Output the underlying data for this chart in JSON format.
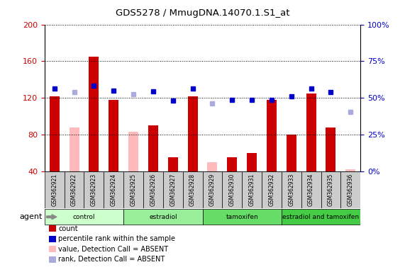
{
  "title": "GDS5278 / MmugDNA.14070.1.S1_at",
  "samples": [
    "GSM362921",
    "GSM362922",
    "GSM362923",
    "GSM362924",
    "GSM362925",
    "GSM362926",
    "GSM362927",
    "GSM362928",
    "GSM362929",
    "GSM362930",
    "GSM362931",
    "GSM362932",
    "GSM362933",
    "GSM362934",
    "GSM362935",
    "GSM362936"
  ],
  "count_values": [
    122,
    null,
    165,
    118,
    null,
    90,
    55,
    122,
    null,
    55,
    60,
    118,
    80,
    125,
    88,
    null
  ],
  "count_absent_values": [
    null,
    88,
    null,
    null,
    83,
    null,
    null,
    null,
    50,
    null,
    null,
    null,
    null,
    null,
    null,
    42
  ],
  "rank_values": [
    130,
    null,
    133,
    128,
    null,
    127,
    117,
    130,
    null,
    118,
    118,
    118,
    122,
    130,
    126,
    null
  ],
  "rank_absent_values": [
    null,
    126,
    null,
    null,
    124,
    null,
    null,
    null,
    114,
    null,
    null,
    null,
    null,
    null,
    null,
    105
  ],
  "ylim_left": [
    40,
    200
  ],
  "ylim_right": [
    0,
    100
  ],
  "yticks_left": [
    40,
    80,
    120,
    160,
    200
  ],
  "yticks_right": [
    0,
    25,
    50,
    75,
    100
  ],
  "ytick_labels_right": [
    "0%",
    "25%",
    "50%",
    "75%",
    "100%"
  ],
  "groups": [
    {
      "label": "control",
      "start": 0,
      "end": 3,
      "color": "#ccffcc"
    },
    {
      "label": "estradiol",
      "start": 4,
      "end": 7,
      "color": "#99ee99"
    },
    {
      "label": "tamoxifen",
      "start": 8,
      "end": 11,
      "color": "#66dd66"
    },
    {
      "label": "estradiol and tamoxifen",
      "start": 12,
      "end": 15,
      "color": "#44cc44"
    }
  ],
  "bar_color_present": "#cc0000",
  "bar_color_absent": "#ffbbbb",
  "rank_color_present": "#0000cc",
  "rank_color_absent": "#aaaadd",
  "bar_width": 0.5,
  "marker_size": 5,
  "agent_label": "agent",
  "legend_items": [
    {
      "label": "count",
      "color": "#cc0000"
    },
    {
      "label": "percentile rank within the sample",
      "color": "#0000cc"
    },
    {
      "label": "value, Detection Call = ABSENT",
      "color": "#ffbbbb"
    },
    {
      "label": "rank, Detection Call = ABSENT",
      "color": "#aaaadd"
    }
  ],
  "background_color": "#ffffff",
  "tick_color_left": "#cc0000",
  "tick_color_right": "#0000cc",
  "sample_box_color": "#cccccc"
}
